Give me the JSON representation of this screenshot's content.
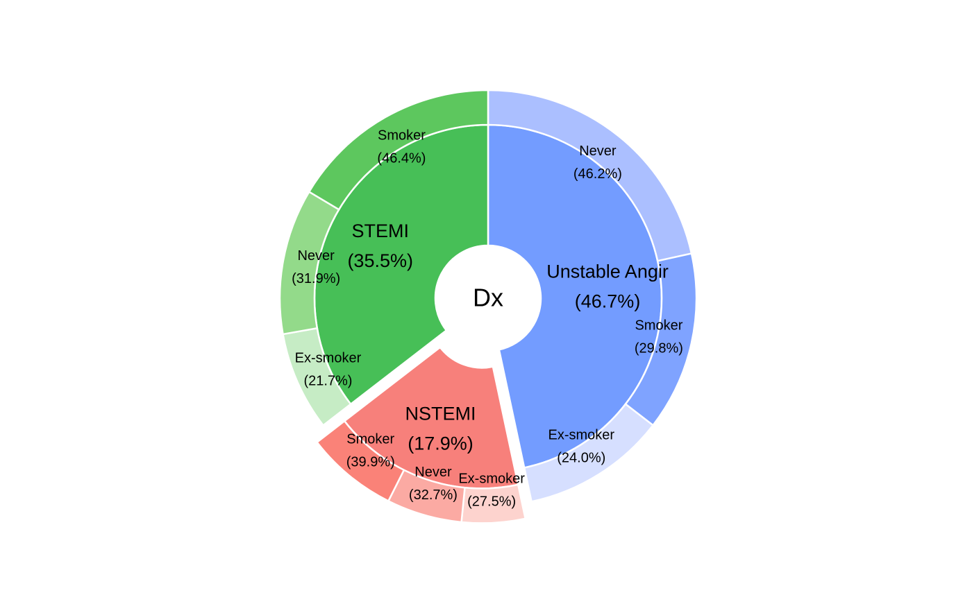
{
  "chart_data": {
    "type": "sunburst",
    "center_label": "Dx",
    "inner": [
      {
        "name": "Unstable Angina",
        "display_name": "Unstable Angir",
        "percent": "(46.7%)",
        "value": 46.7,
        "color": "#739cff",
        "children": [
          {
            "name": "Never",
            "percent": "(46.2%)",
            "value": 46.2,
            "color": "#abbfff"
          },
          {
            "name": "Smoker",
            "percent": "(29.8%)",
            "value": 29.8,
            "color": "#7fa3ff"
          },
          {
            "name": "Ex-smoker",
            "percent": "(24.0%)",
            "value": 24.0,
            "color": "#d6dfff"
          }
        ]
      },
      {
        "name": "NSTEMI",
        "percent": "(17.9%)",
        "value": 17.9,
        "color": "#f7807b",
        "pulled": true,
        "children": [
          {
            "name": "Ex-smoker",
            "percent": "(27.5%)",
            "value": 27.5,
            "color": "#fdd3ce"
          },
          {
            "name": "Never",
            "percent": "(32.7%)",
            "value": 32.7,
            "color": "#fbaaa3"
          },
          {
            "name": "Smoker",
            "percent": "(39.9%)",
            "value": 39.9,
            "color": "#fa8278"
          }
        ]
      },
      {
        "name": "STEMI",
        "percent": "(35.5%)",
        "value": 35.5,
        "color": "#47bf57",
        "children": [
          {
            "name": "Ex-smoker",
            "percent": "(21.7%)",
            "value": 21.7,
            "color": "#c6ecc5"
          },
          {
            "name": "Never",
            "percent": "(31.9%)",
            "value": 31.9,
            "color": "#93da8a"
          },
          {
            "name": "Smoker",
            "percent": "(46.4%)",
            "value": 46.4,
            "color": "#5dc75e"
          }
        ]
      }
    ]
  }
}
